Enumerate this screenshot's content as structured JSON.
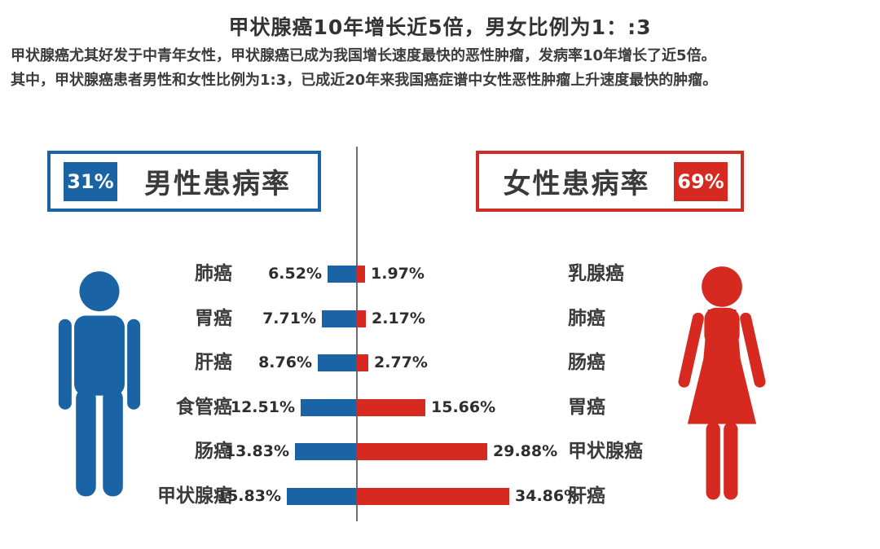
{
  "title": "甲状腺癌10年增长近5倍，男女比例为1：:3",
  "description": {
    "line1": "甲状腺癌尤其好发于中青年女性，甲状腺癌已成为我国增长速度最快的恶性肿瘤，发病率10年增长了近5倍。",
    "line2": "其中，甲状腺癌患者男性和女性比例为1:3，已成近20年来我国癌症谱中女性恶性肿瘤上升速度最快的肿瘤。"
  },
  "colors": {
    "male_blue": "#1a64a6",
    "female_red": "#d6291f",
    "divider_gray": "#6e6e6e",
    "text_dark": "#3a3a3a"
  },
  "chart_data": {
    "type": "bar",
    "variant": "tornado",
    "title": "甲状腺癌10年增长近5倍，男女比例为1：:3",
    "unit": "%",
    "legend_position": "top",
    "legend": [
      {
        "name": "男性患病率",
        "share": "31%",
        "color": "#1a64a6",
        "side": "left"
      },
      {
        "name": "女性患病率",
        "share": "69%",
        "color": "#d6291f",
        "side": "right"
      }
    ],
    "rows": [
      {
        "male_label": "肺癌",
        "male_value": 6.52,
        "male_text": "6.52%",
        "female_value": 1.97,
        "female_text": "1.97%",
        "female_label": "乳腺癌"
      },
      {
        "male_label": "胃癌",
        "male_value": 7.71,
        "male_text": "7.71%",
        "female_value": 2.17,
        "female_text": "2.17%",
        "female_label": "肺癌"
      },
      {
        "male_label": "肝癌",
        "male_value": 8.76,
        "male_text": "8.76%",
        "female_value": 2.77,
        "female_text": "2.77%",
        "female_label": "肠癌"
      },
      {
        "male_label": "食管癌",
        "male_value": 12.51,
        "male_text": "12.51%",
        "female_value": 15.66,
        "female_text": "15.66%",
        "female_label": "胃癌"
      },
      {
        "male_label": "肠癌",
        "male_value": 13.83,
        "male_text": "13.83%",
        "female_value": 29.88,
        "female_text": "29.88%",
        "female_label": "甲状腺癌"
      },
      {
        "male_label": "甲状腺癌",
        "male_value": 15.83,
        "male_text": "15.83%",
        "female_value": 34.86,
        "female_text": "34.86%",
        "female_label": "肝癌"
      }
    ]
  }
}
